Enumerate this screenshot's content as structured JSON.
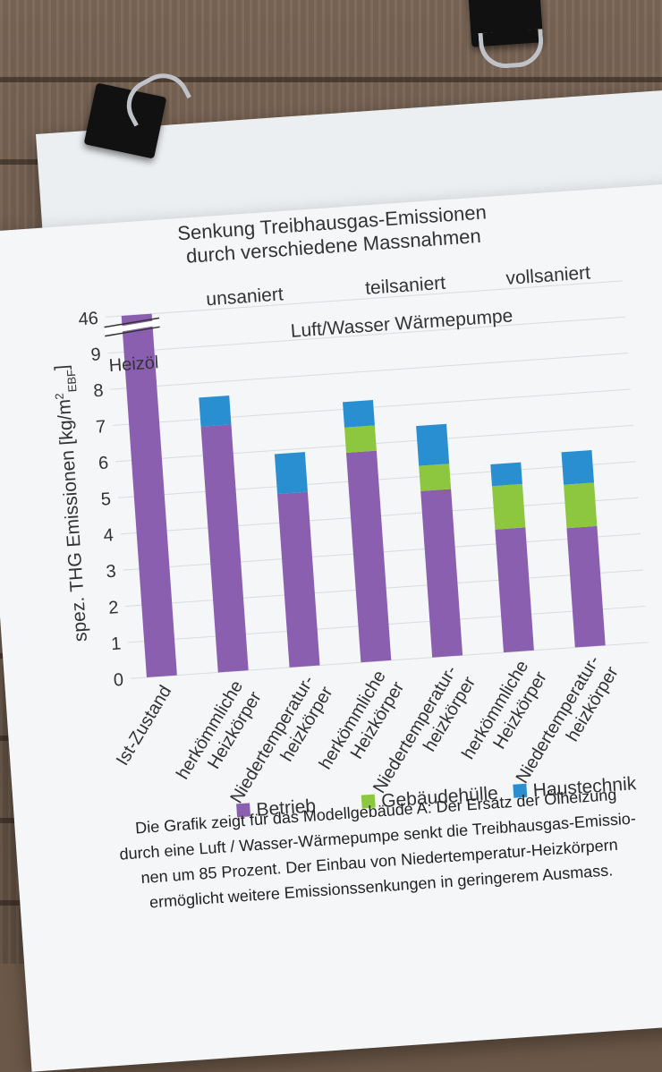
{
  "chart_data": {
    "type": "bar",
    "stacked": true,
    "title_lines": [
      "Senkung Treibhausgas-Emissionen",
      "durch verschiedene Massnahmen"
    ],
    "ylabel": "spez. THG Emissionen  [kg/m²EBF]",
    "ylabel_main": "spez. THG Emissionen  [kg/m",
    "ylabel_sup": "2",
    "ylabel_sub": "EBF",
    "ylabel_close": "]",
    "yticks": [
      "0",
      "1",
      "2",
      "3",
      "4",
      "5",
      "6",
      "7",
      "8",
      "9",
      "46"
    ],
    "axis_break": true,
    "ylim": [
      0,
      10
    ],
    "categories": [
      [
        "Ist-Zustand"
      ],
      [
        "herkömmliche",
        "Heizkörper"
      ],
      [
        "Niedertemperatur-",
        "heizkörper"
      ],
      [
        "herkömmliche",
        "Heizkörper"
      ],
      [
        "Niedertemperatur-",
        "heizkörper"
      ],
      [
        "herkömmliche",
        "Heizkörper"
      ],
      [
        "Niedertemperatur-",
        "heizkörper"
      ]
    ],
    "group_labels": [
      "unsaniert",
      "teilsaniert",
      "vollsaniert"
    ],
    "system_label": "Luft/Wasser Wärmepumpe",
    "baseline_label": "Heizöl",
    "series": [
      {
        "name": "Betrieb",
        "color": "#8a5fb0",
        "values": [
          46,
          6.8,
          4.8,
          5.8,
          4.6,
          3.4,
          3.3
        ]
      },
      {
        "name": "Gebäudehülle",
        "color": "#8dc63f",
        "values": [
          0,
          0,
          0,
          0.7,
          0.7,
          1.2,
          1.2
        ]
      },
      {
        "name": "Haustechnik",
        "color": "#2a8fd0",
        "values": [
          0,
          0.8,
          1.1,
          0.7,
          1.1,
          0.6,
          0.9
        ]
      }
    ]
  },
  "caption_lines": [
    "Die Grafik zeigt für das Modellgebäude A: Der Ersatz der Ölheizung",
    "durch eine Luft / Wasser-Wärmepumpe senkt die Treibhausgas-Emissio-",
    "nen um 85 Prozent. Der Einbau von Niedertemperatur-Heizkörpern",
    "ermöglicht weitere Emissionssenkungen in geringerem Ausmass."
  ]
}
